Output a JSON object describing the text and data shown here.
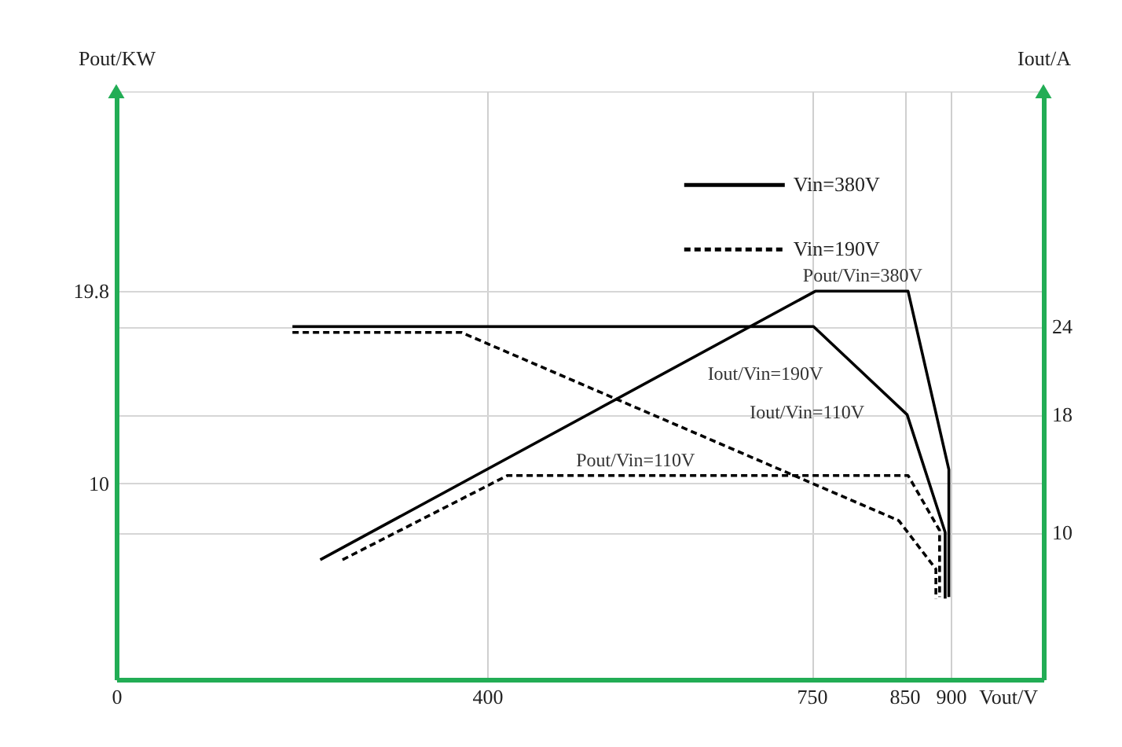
{
  "chart_data": {
    "type": "line",
    "xlabel": "Vout/V",
    "ylabel": "Pout/KW",
    "y2label": "Iout/A",
    "xlim": [
      0,
      1000
    ],
    "xticks": [
      0,
      400,
      750,
      850,
      900
    ],
    "ylim": [
      0,
      30
    ],
    "yticks": [
      10,
      19.8
    ],
    "y2lim": [
      0,
      40
    ],
    "y2ticks": [
      10,
      18,
      24
    ],
    "grid": true,
    "legend": "top right",
    "series": [
      {
        "name": "Vin=380V",
        "color": "#000000",
        "line_style": "solid",
        "x": [
          220,
          754,
          854,
          898,
          898
        ],
        "values": [
          6.1,
          19.8,
          19.8,
          10.7,
          4.2
        ]
      },
      {
        "color": "#000000",
        "line_style": "solid",
        "axis": "y2",
        "x": [
          190,
          752,
          853,
          894,
          894
        ],
        "values": [
          24,
          24,
          18,
          10,
          5.5
        ]
      },
      {
        "name": "Vin=190V",
        "color": "#000000",
        "line_style": "dashed",
        "x": [
          244,
          422,
          854,
          888,
          888
        ],
        "values": [
          6.1,
          10.4,
          10.4,
          7.6,
          4.2
        ]
      },
      {
        "color": "#000000",
        "line_style": "dashed",
        "axis": "y2",
        "x": [
          190,
          372,
          844,
          884,
          884
        ],
        "values": [
          23.6,
          23.6,
          10.8,
          7.5,
          5.5
        ]
      }
    ],
    "annotations": [
      {
        "text": "Pout/Vin=380V",
        "x": 805,
        "y": 19.8
      },
      "Iout/Vin=190V",
      "Iout/Vin=110V",
      {
        "text": "Pout/Vin=110V",
        "x": 560,
        "y": 10.4
      }
    ]
  }
}
